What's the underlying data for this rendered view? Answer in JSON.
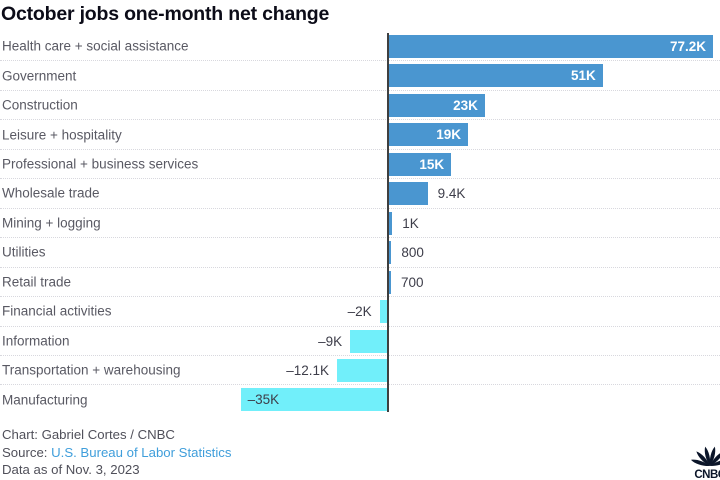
{
  "title": "October jobs one-month net change",
  "colors": {
    "positive_bar": "#4a96d0",
    "negative_bar": "#71effa",
    "axis": "#3f3f3f",
    "title_text": "#0c0c18",
    "category_text": "#595963",
    "value_text_dark": "#3d3d49",
    "value_text_light": "#ffffff",
    "separator": "#d8d8de",
    "link": "#3f9edb",
    "logo": "#0b1529"
  },
  "chart_data": {
    "type": "bar",
    "orientation": "horizontal",
    "title": "October jobs one-month net change",
    "unit": "jobs (thousands)",
    "categories": [
      "Health care + social assistance",
      "Government",
      "Construction",
      "Leisure + hospitality",
      "Professional + business services",
      "Wholesale trade",
      "Mining + logging",
      "Utilities",
      "Retail trade",
      "Financial activities",
      "Information",
      "Transportation + warehousing",
      "Manufacturing"
    ],
    "values": [
      77.2,
      51,
      23,
      19,
      15,
      9.4,
      1,
      0.8,
      0.7,
      -2,
      -9,
      -12.1,
      -35
    ],
    "value_labels": [
      "77.2K",
      "51K",
      "23K",
      "19K",
      "15K",
      "9.4K",
      "1K",
      "800",
      "700",
      "–2K",
      "–9K",
      "–12.1K",
      "–35K"
    ],
    "xlim": [
      -92,
      79
    ],
    "grid": false,
    "legend": "none",
    "baseline": 0,
    "separators": "dotted between rows"
  },
  "footer": {
    "credit": "Chart: Gabriel Cortes / CNBC",
    "source_prefix": "Source: ",
    "source_link": "U.S. Bureau of Labor Statistics",
    "data_as_of": "Data as of Nov. 3, 2023"
  },
  "logo": {
    "brand": "CNBC"
  }
}
